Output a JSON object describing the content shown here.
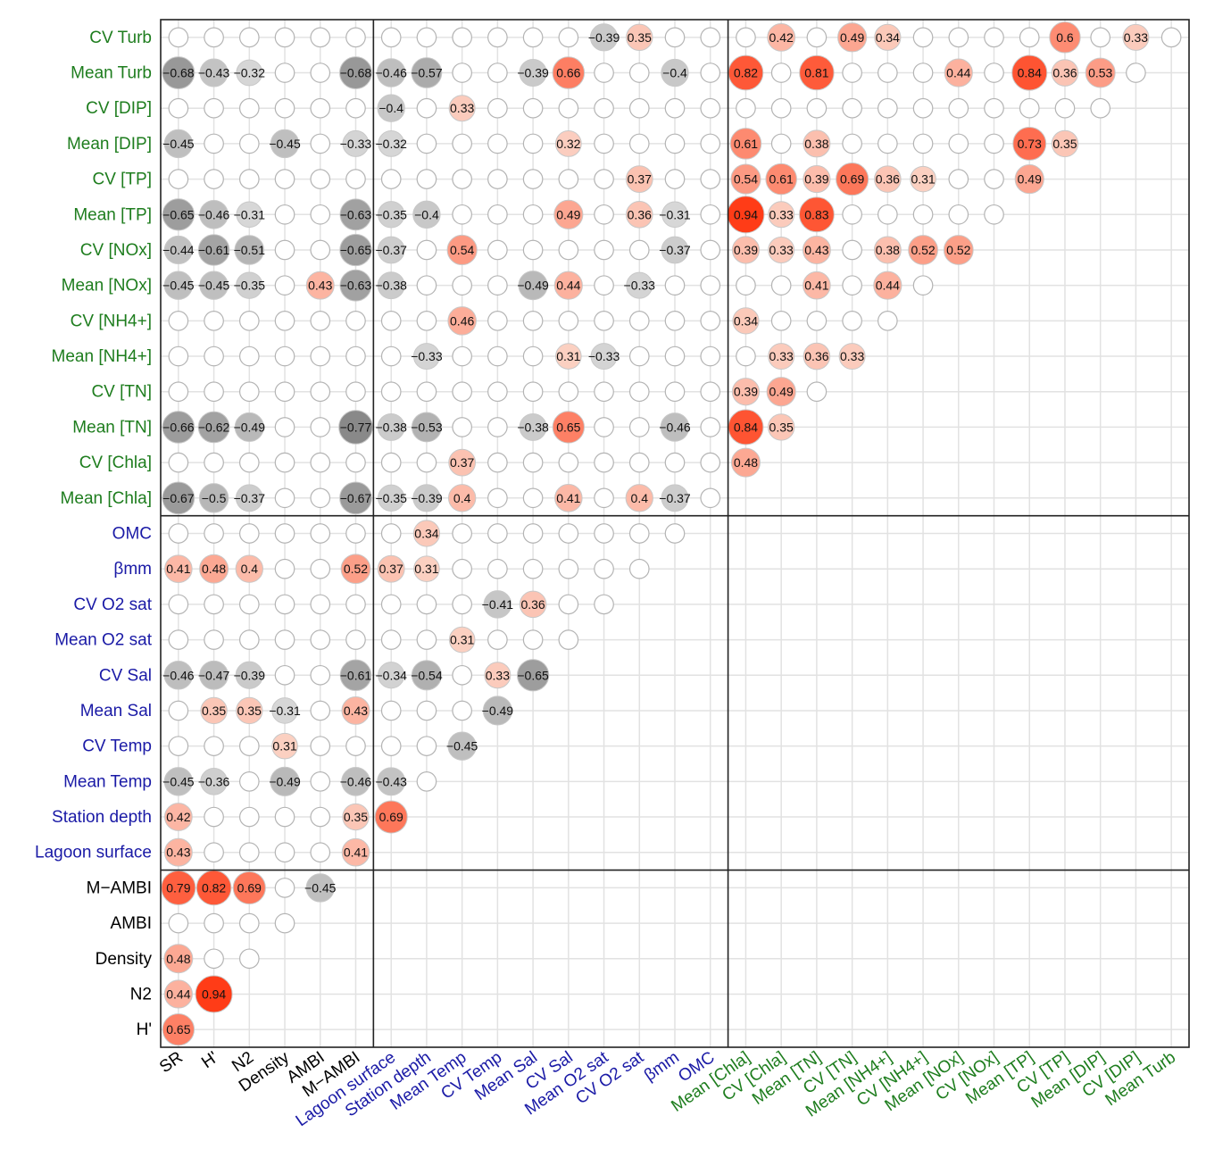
{
  "chart_data": {
    "type": "heatmap",
    "title": "",
    "xlabel": "",
    "ylabel": "",
    "x_labels": [
      "SR",
      "H'",
      "N2",
      "Density",
      "AMBI",
      "M−AMBI",
      "Lagoon surface",
      "Station depth",
      "Mean Temp",
      "CV Temp",
      "Mean Sal",
      "CV Sal",
      "Mean O2 sat",
      "CV O2 sat",
      "βmm",
      "OMC",
      "Mean [Chla]",
      "CV [Chla]",
      "Mean [TN]",
      "CV [TN]",
      "Mean [NH4+]",
      "CV [NH4+]",
      "Mean [NOx]",
      "CV [NOx]",
      "Mean [TP]",
      "CV [TP]",
      "Mean [DIP]",
      "CV [DIP]",
      "Mean Turb"
    ],
    "y_labels": [
      "CV Turb",
      "Mean Turb",
      "CV [DIP]",
      "Mean [DIP]",
      "CV [TP]",
      "Mean [TP]",
      "CV [NOx]",
      "Mean [NOx]",
      "CV [NH4+]",
      "Mean [NH4+]",
      "CV [TN]",
      "Mean [TN]",
      "CV [Chla]",
      "Mean [Chla]",
      "OMC",
      "βmm",
      "CV O2 sat",
      "Mean O2 sat",
      "CV Sal",
      "Mean Sal",
      "CV Temp",
      "Mean Temp",
      "Station depth",
      "Lagoon surface",
      "M−AMBI",
      "AMBI",
      "Density",
      "N2",
      "H'"
    ],
    "x_groups": [
      {
        "color": "#000000",
        "count": 6
      },
      {
        "color": "#1a1aa6",
        "count": 10
      },
      {
        "color": "#1e7d1e",
        "count": 13
      }
    ],
    "y_groups": [
      {
        "color": "#1e7d1e",
        "count": 14
      },
      {
        "color": "#1a1aa6",
        "count": 10
      },
      {
        "color": "#000000",
        "count": 5
      }
    ],
    "row_lengths": [
      29,
      28,
      27,
      26,
      25,
      24,
      23,
      22,
      21,
      20,
      19,
      18,
      17,
      16,
      15,
      14,
      13,
      12,
      11,
      10,
      9,
      8,
      7,
      6,
      5,
      4,
      3,
      2,
      1
    ],
    "values": [
      [
        0,
        0,
        0,
        0,
        0,
        0,
        0,
        0,
        0,
        0,
        0,
        0,
        -0.39,
        0.35,
        0,
        0,
        0,
        0.42,
        0,
        0.49,
        0.34,
        0,
        0,
        0,
        0,
        0.6,
        0,
        0.33,
        0
      ],
      [
        -0.68,
        -0.43,
        -0.32,
        0,
        0,
        -0.68,
        -0.46,
        -0.57,
        0,
        0,
        -0.39,
        0.66,
        0,
        0,
        -0.4,
        0,
        0.82,
        0,
        0.81,
        0,
        0,
        0,
        0.44,
        0,
        0.84,
        0.36,
        0.53,
        0
      ],
      [
        0,
        0,
        0,
        0,
        0,
        0,
        -0.4,
        0,
        0.33,
        0,
        0,
        0,
        0,
        0,
        0,
        0,
        0,
        0,
        0,
        0,
        0,
        0,
        0,
        0,
        0,
        0,
        0
      ],
      [
        -0.45,
        0,
        0,
        -0.45,
        0,
        -0.33,
        -0.32,
        0,
        0,
        0,
        0,
        0.32,
        0,
        0,
        0,
        0,
        0.61,
        0,
        0.38,
        0,
        0,
        0,
        0,
        0,
        0.73,
        0.35
      ],
      [
        0,
        0,
        0,
        0,
        0,
        0,
        0,
        0,
        0,
        0,
        0,
        0,
        0,
        0.37,
        0,
        0,
        0.54,
        0.61,
        0.39,
        0.69,
        0.36,
        0.31,
        0,
        0,
        0.49
      ],
      [
        -0.65,
        -0.46,
        -0.31,
        0,
        0,
        -0.63,
        -0.35,
        -0.4,
        0,
        0,
        0,
        0.49,
        0,
        0.36,
        -0.31,
        0,
        0.94,
        0.33,
        0.83,
        0,
        0,
        0,
        0,
        0
      ],
      [
        -0.44,
        -0.61,
        -0.51,
        0,
        0,
        -0.65,
        -0.37,
        0,
        0.54,
        0,
        0,
        0,
        0,
        0,
        -0.37,
        0,
        0.39,
        0.33,
        0.43,
        0,
        0.38,
        0.52,
        0.52
      ],
      [
        -0.45,
        -0.45,
        -0.35,
        0,
        0.43,
        -0.63,
        -0.38,
        0,
        0,
        0,
        -0.49,
        0.44,
        0,
        -0.33,
        0,
        0,
        0,
        0,
        0.41,
        0,
        0.44,
        0
      ],
      [
        0,
        0,
        0,
        0,
        0,
        0,
        0,
        0,
        0.46,
        0,
        0,
        0,
        0,
        0,
        0,
        0,
        0.34,
        0,
        0,
        0,
        0
      ],
      [
        0,
        0,
        0,
        0,
        0,
        0,
        0,
        -0.33,
        0,
        0,
        0,
        0.31,
        -0.33,
        0,
        0,
        0,
        0,
        0.33,
        0.36,
        0.33
      ],
      [
        0,
        0,
        0,
        0,
        0,
        0,
        0,
        0,
        0,
        0,
        0,
        0,
        0,
        0,
        0,
        0,
        0.39,
        0.49,
        0
      ],
      [
        -0.66,
        -0.62,
        -0.49,
        0,
        0,
        -0.77,
        -0.38,
        -0.53,
        0,
        0,
        -0.38,
        0.65,
        0,
        0,
        -0.46,
        0,
        0.84,
        0.35
      ],
      [
        0,
        0,
        0,
        0,
        0,
        0,
        0,
        0,
        0.37,
        0,
        0,
        0,
        0,
        0,
        0,
        0,
        0.48
      ],
      [
        -0.67,
        -0.5,
        -0.37,
        0,
        0,
        -0.67,
        -0.35,
        -0.39,
        0.4,
        0,
        0,
        0.41,
        0,
        0.4,
        -0.37,
        0
      ],
      [
        0,
        0,
        0,
        0,
        0,
        0,
        0,
        0.34,
        0,
        0,
        0,
        0,
        0,
        0,
        0
      ],
      [
        0.41,
        0.48,
        0.4,
        0,
        0,
        0.52,
        0.37,
        0.31,
        0,
        0,
        0,
        0,
        0,
        0
      ],
      [
        0,
        0,
        0,
        0,
        0,
        0,
        0,
        0,
        0,
        -0.41,
        0.36,
        0,
        0
      ],
      [
        0,
        0,
        0,
        0,
        0,
        0,
        0,
        0,
        0.31,
        0,
        0,
        0
      ],
      [
        -0.46,
        -0.47,
        -0.39,
        0,
        0,
        -0.61,
        -0.34,
        -0.54,
        0,
        0.33,
        -0.65
      ],
      [
        0,
        0.35,
        0.35,
        -0.31,
        0,
        0.43,
        0,
        0,
        0,
        -0.49
      ],
      [
        0,
        0,
        0,
        0.31,
        0,
        0,
        0,
        0,
        -0.45
      ],
      [
        -0.45,
        -0.36,
        0,
        -0.49,
        0,
        -0.46,
        -0.43,
        0
      ],
      [
        0.42,
        0,
        0,
        0,
        0,
        0.35,
        0.69
      ],
      [
        0.43,
        0,
        0,
        0,
        0,
        0.41
      ],
      [
        0.79,
        0.82,
        0.69,
        0,
        -0.45
      ],
      [
        0,
        0,
        0,
        0
      ],
      [
        0.48,
        0,
        0
      ],
      [
        0.44,
        0.94
      ],
      [
        0.65
      ]
    ],
    "positive_color": "#ff3a14",
    "negative_color": "#6a6a6a",
    "grid": true,
    "legend": "none"
  }
}
